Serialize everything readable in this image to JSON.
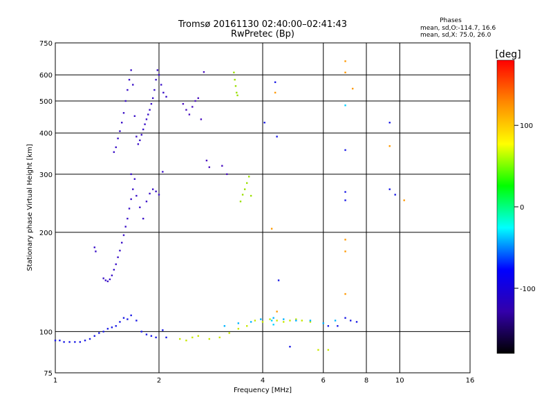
{
  "chart_data": {
    "type": "scatter",
    "title": "Tromsø 20161130 02:40:00–02:41:43",
    "subtitle": "RwPretec (Bp)",
    "xlabel": "Frequency [MHz]",
    "ylabel": "Stationary phase Virtual Height [km]",
    "x_scale": "log",
    "y_scale": "log",
    "xlim": [
      1,
      16
    ],
    "ylim": [
      75,
      750
    ],
    "x_ticks": [
      "1",
      "2",
      "4",
      "6",
      "8",
      "10",
      "16"
    ],
    "y_ticks": [
      "75",
      "100",
      "200",
      "300",
      "400",
      "500",
      "600",
      "750"
    ],
    "x_grid": [
      2,
      4,
      6,
      8,
      10
    ],
    "y_grid": [
      100,
      200,
      300,
      400,
      500,
      600
    ],
    "grid": true,
    "legend": {
      "placement": "top-right",
      "heading": "Phases",
      "lines": [
        "mean, sd,O:-114.7, 16.6",
        "mean, sd,X: 75.0, 26.0"
      ]
    },
    "colorbar": {
      "label": "[deg]",
      "range": [
        -180,
        180
      ],
      "ticks": [
        "100",
        "0",
        "-100"
      ],
      "tick_values": [
        100,
        0,
        -100
      ],
      "colors": [
        "#ff0000",
        "#ff8800",
        "#ffff00",
        "#00ff00",
        "#00ffff",
        "#0000ff",
        "#3300aa",
        "#000000"
      ]
    },
    "series": [
      {
        "color": "#1a1ae6",
        "points": [
          [
            1.0,
            94
          ],
          [
            1.03,
            94
          ],
          [
            1.06,
            93
          ],
          [
            1.1,
            93
          ],
          [
            1.14,
            93
          ],
          [
            1.18,
            93
          ],
          [
            1.22,
            94
          ],
          [
            1.26,
            95
          ],
          [
            1.3,
            97
          ],
          [
            1.34,
            99
          ],
          [
            1.38,
            100
          ],
          [
            1.42,
            102
          ],
          [
            1.46,
            103
          ],
          [
            1.5,
            104
          ],
          [
            1.54,
            107
          ],
          [
            1.58,
            110
          ],
          [
            1.62,
            109
          ],
          [
            1.66,
            112
          ],
          [
            1.72,
            108
          ],
          [
            1.78,
            100
          ],
          [
            1.84,
            98
          ],
          [
            1.9,
            97
          ],
          [
            1.96,
            96
          ],
          [
            2.05,
            101
          ],
          [
            2.1,
            96
          ]
        ]
      },
      {
        "color": "#3a10c8",
        "points": [
          [
            1.3,
            180
          ],
          [
            1.31,
            175
          ],
          [
            1.38,
            145
          ],
          [
            1.4,
            143
          ],
          [
            1.42,
            142
          ],
          [
            1.44,
            144
          ],
          [
            1.46,
            148
          ],
          [
            1.48,
            154
          ],
          [
            1.5,
            160
          ],
          [
            1.52,
            168
          ],
          [
            1.54,
            176
          ],
          [
            1.56,
            186
          ],
          [
            1.58,
            196
          ],
          [
            1.6,
            208
          ],
          [
            1.62,
            220
          ],
          [
            1.64,
            236
          ],
          [
            1.66,
            252
          ],
          [
            1.68,
            270
          ],
          [
            1.7,
            290
          ],
          [
            1.66,
            300
          ],
          [
            1.72,
            258
          ],
          [
            1.76,
            238
          ],
          [
            1.8,
            220
          ],
          [
            1.84,
            248
          ],
          [
            1.88,
            262
          ],
          [
            1.92,
            270
          ],
          [
            1.96,
            266
          ],
          [
            2.0,
            260
          ],
          [
            2.05,
            305
          ]
        ]
      },
      {
        "color": "#3a10c8",
        "points": [
          [
            1.48,
            350
          ],
          [
            1.5,
            362
          ],
          [
            1.52,
            385
          ],
          [
            1.54,
            405
          ],
          [
            1.56,
            430
          ],
          [
            1.58,
            460
          ],
          [
            1.6,
            500
          ],
          [
            1.62,
            540
          ],
          [
            1.64,
            580
          ],
          [
            1.66,
            620
          ],
          [
            1.68,
            560
          ],
          [
            1.7,
            450
          ],
          [
            1.72,
            390
          ],
          [
            1.74,
            370
          ],
          [
            1.76,
            380
          ],
          [
            1.78,
            395
          ],
          [
            1.8,
            410
          ],
          [
            1.82,
            425
          ],
          [
            1.84,
            440
          ],
          [
            1.86,
            455
          ],
          [
            1.88,
            470
          ],
          [
            1.9,
            490
          ],
          [
            1.92,
            510
          ],
          [
            1.94,
            540
          ],
          [
            1.96,
            580
          ],
          [
            1.98,
            620
          ],
          [
            2.0,
            600
          ],
          [
            2.03,
            560
          ],
          [
            2.06,
            530
          ],
          [
            2.1,
            515
          ]
        ]
      },
      {
        "color": "#4a10c0",
        "points": [
          [
            2.35,
            490
          ],
          [
            2.4,
            470
          ],
          [
            2.45,
            455
          ],
          [
            2.5,
            480
          ],
          [
            2.55,
            500
          ],
          [
            2.6,
            510
          ],
          [
            2.65,
            440
          ],
          [
            2.7,
            612
          ],
          [
            2.75,
            330
          ],
          [
            2.8,
            315
          ],
          [
            3.05,
            318
          ],
          [
            3.15,
            300
          ]
        ]
      },
      {
        "color": "#9be000",
        "points": [
          [
            3.3,
            610
          ],
          [
            3.32,
            580
          ],
          [
            3.34,
            555
          ],
          [
            3.36,
            530
          ],
          [
            3.38,
            520
          ],
          [
            3.45,
            248
          ],
          [
            3.5,
            260
          ],
          [
            3.55,
            270
          ],
          [
            3.6,
            282
          ],
          [
            3.65,
            295
          ],
          [
            3.7,
            258
          ]
        ]
      },
      {
        "color": "#c8e800",
        "points": [
          [
            2.3,
            95
          ],
          [
            2.4,
            94
          ],
          [
            2.5,
            96
          ],
          [
            2.6,
            97
          ],
          [
            2.8,
            95
          ],
          [
            3.0,
            96
          ],
          [
            3.2,
            99
          ],
          [
            3.4,
            102
          ],
          [
            3.6,
            104
          ],
          [
            3.8,
            108
          ],
          [
            4.0,
            107
          ],
          [
            4.2,
            109
          ],
          [
            4.4,
            108
          ],
          [
            4.6,
            107
          ],
          [
            4.8,
            108
          ],
          [
            5.0,
            109
          ],
          [
            5.2,
            108
          ],
          [
            5.5,
            107
          ],
          [
            5.8,
            88
          ],
          [
            6.2,
            88
          ]
        ]
      },
      {
        "color": "#00b4ff",
        "points": [
          [
            3.1,
            104
          ],
          [
            3.4,
            106
          ],
          [
            3.7,
            107
          ],
          [
            3.95,
            109
          ],
          [
            4.3,
            110
          ],
          [
            4.6,
            109
          ],
          [
            5.0,
            108
          ],
          [
            5.5,
            108
          ],
          [
            6.0,
            106
          ],
          [
            6.5,
            108
          ]
        ]
      },
      {
        "color": "#1a1ae6",
        "points": [
          [
            4.05,
            430
          ],
          [
            4.35,
            570
          ],
          [
            4.4,
            390
          ],
          [
            4.45,
            143
          ],
          [
            4.8,
            90
          ],
          [
            6.95,
            355
          ],
          [
            6.95,
            250
          ],
          [
            6.95,
            265
          ],
          [
            6.95,
            110
          ],
          [
            7.2,
            108
          ],
          [
            7.5,
            107
          ],
          [
            9.35,
            430
          ],
          [
            9.35,
            270
          ],
          [
            9.7,
            260
          ],
          [
            6.2,
            104
          ],
          [
            6.6,
            104
          ]
        ]
      },
      {
        "color": "#ff9900",
        "points": [
          [
            4.25,
            205
          ],
          [
            4.35,
            530
          ],
          [
            4.4,
            115
          ],
          [
            6.95,
            190
          ],
          [
            6.95,
            175
          ],
          [
            6.95,
            660
          ],
          [
            6.95,
            610
          ],
          [
            7.3,
            545
          ],
          [
            9.35,
            365
          ],
          [
            10.3,
            250
          ],
          [
            6.95,
            130
          ]
        ]
      },
      {
        "color": "#00d0ff",
        "points": [
          [
            6.95,
            485
          ],
          [
            4.25,
            108
          ],
          [
            4.3,
            105
          ]
        ]
      }
    ]
  }
}
